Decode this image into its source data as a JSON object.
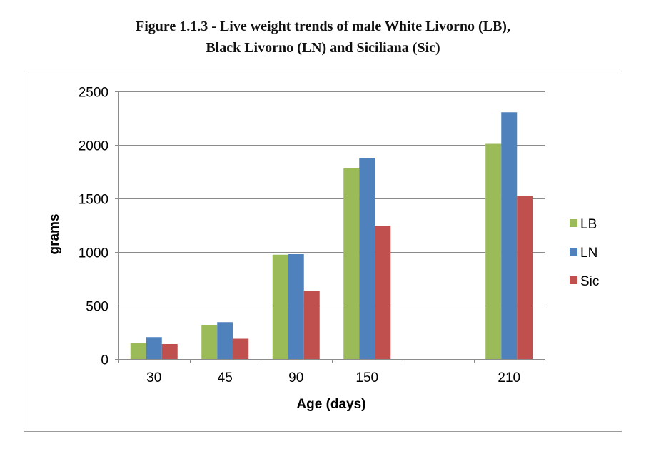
{
  "figure": {
    "title_line1": "Figure 1.1.3 - Live weight trends of male White Livorno (LB),",
    "title_line2": "Black Livorno (LN) and Siciliana (Sic)"
  },
  "chart_data": {
    "type": "bar",
    "categories": [
      "30",
      "45",
      "90",
      "150",
      "",
      "210"
    ],
    "series": [
      {
        "name": "LB",
        "color": "#9bbb59",
        "values": [
          150,
          320,
          975,
          1780,
          null,
          2010
        ]
      },
      {
        "name": "LN",
        "color": "#4f81bd",
        "values": [
          205,
          345,
          980,
          1880,
          null,
          2305
        ]
      },
      {
        "name": "Sic",
        "color": "#c0504d",
        "values": [
          140,
          190,
          640,
          1245,
          null,
          1525
        ]
      }
    ],
    "xlabel": "Age (days)",
    "ylabel": "grams",
    "ylim": [
      0,
      2500
    ],
    "yticks": [
      0,
      500,
      1000,
      1500,
      2000,
      2500
    ],
    "grid": true,
    "legend_position": "right"
  }
}
